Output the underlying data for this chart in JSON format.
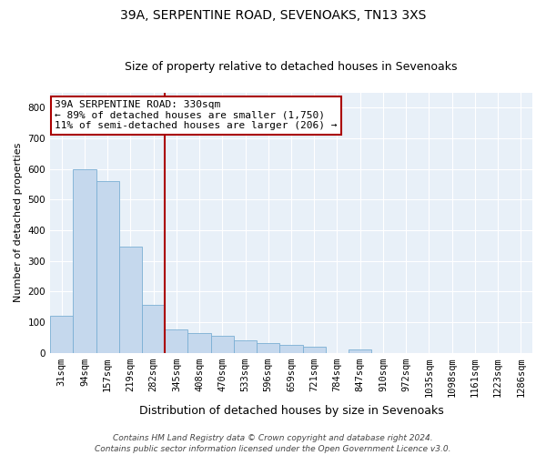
{
  "title": "39A, SERPENTINE ROAD, SEVENOAKS, TN13 3XS",
  "subtitle": "Size of property relative to detached houses in Sevenoaks",
  "xlabel": "Distribution of detached houses by size in Sevenoaks",
  "ylabel": "Number of detached properties",
  "categories": [
    "31sqm",
    "94sqm",
    "157sqm",
    "219sqm",
    "282sqm",
    "345sqm",
    "408sqm",
    "470sqm",
    "533sqm",
    "596sqm",
    "659sqm",
    "721sqm",
    "784sqm",
    "847sqm",
    "910sqm",
    "972sqm",
    "1035sqm",
    "1098sqm",
    "1161sqm",
    "1223sqm",
    "1286sqm"
  ],
  "values": [
    120,
    600,
    560,
    345,
    155,
    75,
    65,
    55,
    40,
    30,
    25,
    20,
    0,
    10,
    0,
    0,
    0,
    0,
    0,
    0,
    0
  ],
  "bar_color": "#c5d8ed",
  "bar_edge_color": "#7aafd4",
  "vline_pos": 4.5,
  "vline_color": "#aa0000",
  "annotation_text_line1": "39A SERPENTINE ROAD: 330sqm",
  "annotation_text_line2": "← 89% of detached houses are smaller (1,750)",
  "annotation_text_line3": "11% of semi-detached houses are larger (206) →",
  "ylim": [
    0,
    850
  ],
  "yticks": [
    0,
    100,
    200,
    300,
    400,
    500,
    600,
    700,
    800
  ],
  "plot_bg_color": "#e8f0f8",
  "grid_color": "#ffffff",
  "footer_line1": "Contains HM Land Registry data © Crown copyright and database right 2024.",
  "footer_line2": "Contains public sector information licensed under the Open Government Licence v3.0.",
  "title_fontsize": 10,
  "subtitle_fontsize": 9,
  "xlabel_fontsize": 9,
  "ylabel_fontsize": 8,
  "tick_fontsize": 7.5,
  "annot_fontsize": 8,
  "footer_fontsize": 6.5
}
